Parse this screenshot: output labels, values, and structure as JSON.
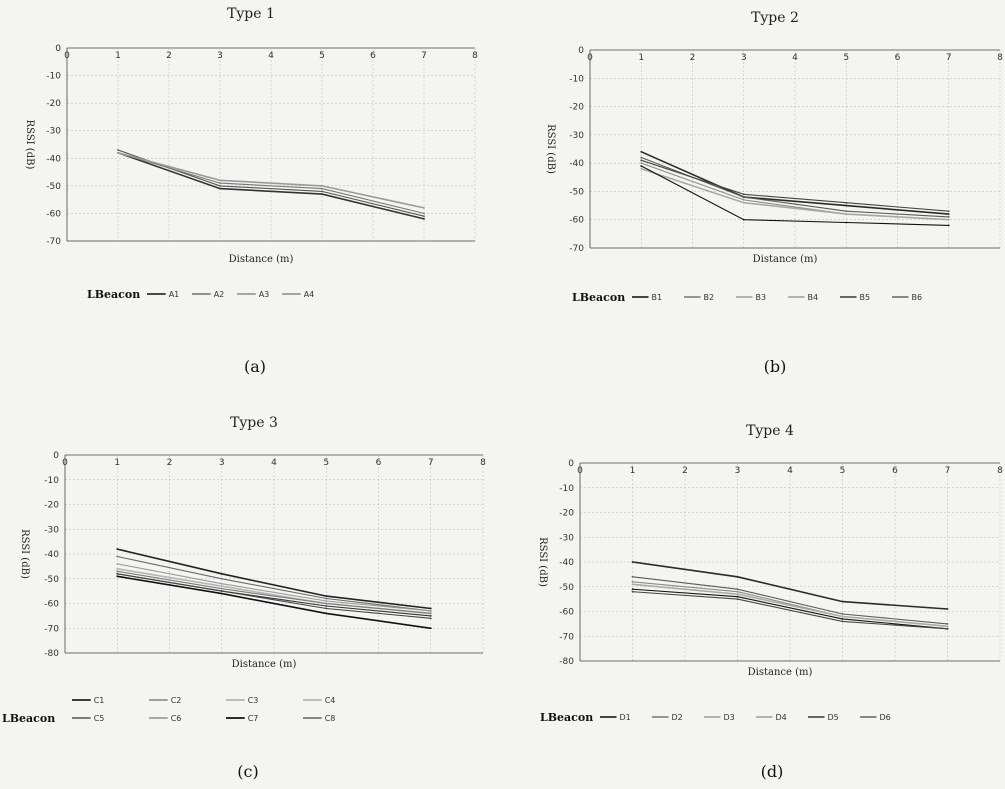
{
  "chart_data": [
    {
      "type": "line",
      "panel": "a",
      "caption": "(a)",
      "title": "Type 1",
      "xlabel": "Distance (m)",
      "ylabel": "RSSI (dB)",
      "xlim": [
        0,
        8
      ],
      "ylim": [
        -70,
        0
      ],
      "xticks": [
        "0",
        "1",
        "2",
        "3",
        "4",
        "5",
        "6",
        "7",
        "8"
      ],
      "yticks": [
        "0",
        "-10",
        "-20",
        "-30",
        "-40",
        "-50",
        "-60",
        "-70"
      ],
      "x": [
        1,
        3,
        5,
        7
      ],
      "legend_title": "LBeacon",
      "series": [
        {
          "name": "A1",
          "color": "#333333",
          "values": [
            -38,
            -51,
            -53,
            -62
          ]
        },
        {
          "name": "A2",
          "color": "#555555",
          "values": [
            -37,
            -50,
            -52,
            -61
          ]
        },
        {
          "name": "A3",
          "color": "#777777",
          "values": [
            -38,
            -49,
            -51,
            -60
          ]
        },
        {
          "name": "A4",
          "color": "#9a9a9a",
          "values": [
            -38,
            -48,
            -50,
            -58
          ]
        }
      ]
    },
    {
      "type": "line",
      "panel": "b",
      "caption": "(b)",
      "title": "Type 2",
      "xlabel": "Distance (m)",
      "ylabel": "RSSI (dB)",
      "xlim": [
        0,
        8
      ],
      "ylim": [
        -70,
        0
      ],
      "xticks": [
        "0",
        "1",
        "2",
        "3",
        "4",
        "5",
        "6",
        "7",
        "8"
      ],
      "yticks": [
        "0",
        "-10",
        "-20",
        "-30",
        "-40",
        "-50",
        "-60",
        "-70"
      ],
      "x": [
        1,
        3,
        5,
        7
      ],
      "legend_title": "LBeacon",
      "series": [
        {
          "name": "B1",
          "color": "#2a2a2a",
          "values": [
            -36,
            -52,
            -55,
            -58
          ]
        },
        {
          "name": "B2",
          "color": "#5a5a5a",
          "values": [
            -38,
            -52,
            -57,
            -59
          ]
        },
        {
          "name": "B3",
          "color": "#8a8a8a",
          "values": [
            -40,
            -53,
            -58,
            -60
          ]
        },
        {
          "name": "B4",
          "color": "#a8a8a8",
          "values": [
            -42,
            -54,
            -58,
            -60
          ]
        },
        {
          "name": "B5",
          "color": "#111111",
          "values": [
            -41,
            -60,
            -61,
            -62
          ]
        },
        {
          "name": "B6",
          "color": "#444444",
          "values": [
            -39,
            -51,
            -54,
            -57
          ]
        }
      ]
    },
    {
      "type": "line",
      "panel": "c",
      "caption": "(c)",
      "title": "Type 3",
      "xlabel": "Distance (m)",
      "ylabel": "RSSI (dB)",
      "xlim": [
        0,
        8
      ],
      "ylim": [
        -80,
        0
      ],
      "xticks": [
        "0",
        "1",
        "2",
        "3",
        "4",
        "5",
        "6",
        "7",
        "8"
      ],
      "yticks": [
        "0",
        "-10",
        "-20",
        "-30",
        "-40",
        "-50",
        "-60",
        "-70",
        "-80"
      ],
      "x": [
        1,
        3,
        5,
        7
      ],
      "legend_title": "LBeacon",
      "series": [
        {
          "name": "C1",
          "color": "#222222",
          "values": [
            -38,
            -48,
            -57,
            -62
          ]
        },
        {
          "name": "C2",
          "color": "#6a6a6a",
          "values": [
            -41,
            -50,
            -58,
            -63
          ]
        },
        {
          "name": "C3",
          "color": "#9a9a9a",
          "values": [
            -44,
            -52,
            -59,
            -63
          ]
        },
        {
          "name": "C4",
          "color": "#b5b5b5",
          "values": [
            -46,
            -53,
            -60,
            -64
          ]
        },
        {
          "name": "C5",
          "color": "#333333",
          "values": [
            -48,
            -55,
            -61,
            -65
          ]
        },
        {
          "name": "C6",
          "color": "#7a7a7a",
          "values": [
            -47,
            -54,
            -60,
            -64
          ]
        },
        {
          "name": "C7",
          "color": "#111111",
          "values": [
            -49,
            -56,
            -64,
            -70
          ]
        },
        {
          "name": "C8",
          "color": "#444444",
          "values": [
            -48,
            -55,
            -62,
            -66
          ]
        }
      ]
    },
    {
      "type": "line",
      "panel": "d",
      "caption": "(d)",
      "title": "Type 4",
      "xlabel": "Distance (m)",
      "ylabel": "RSSI (dB)",
      "xlim": [
        0,
        8
      ],
      "ylim": [
        -80,
        0
      ],
      "xticks": [
        "0",
        "1",
        "2",
        "3",
        "4",
        "5",
        "6",
        "7",
        "8"
      ],
      "yticks": [
        "0",
        "-10",
        "-20",
        "-30",
        "-40",
        "-50",
        "-60",
        "-70",
        "-80"
      ],
      "x": [
        1,
        3,
        5,
        7
      ],
      "legend_title": "LBeacon",
      "series": [
        {
          "name": "D1",
          "color": "#2a2a2a",
          "values": [
            -40,
            -46,
            -56,
            -59
          ]
        },
        {
          "name": "D2",
          "color": "#5a5a5a",
          "values": [
            -46,
            -51,
            -61,
            -65
          ]
        },
        {
          "name": "D3",
          "color": "#8a8a8a",
          "values": [
            -48,
            -52,
            -62,
            -66
          ]
        },
        {
          "name": "D4",
          "color": "#aaaaaa",
          "values": [
            -49,
            -53,
            -62,
            -66
          ]
        },
        {
          "name": "D5",
          "color": "#111111",
          "values": [
            -51,
            -54,
            -63,
            -67
          ]
        },
        {
          "name": "D6",
          "color": "#444444",
          "values": [
            -52,
            -55,
            -64,
            -67
          ]
        }
      ]
    }
  ]
}
